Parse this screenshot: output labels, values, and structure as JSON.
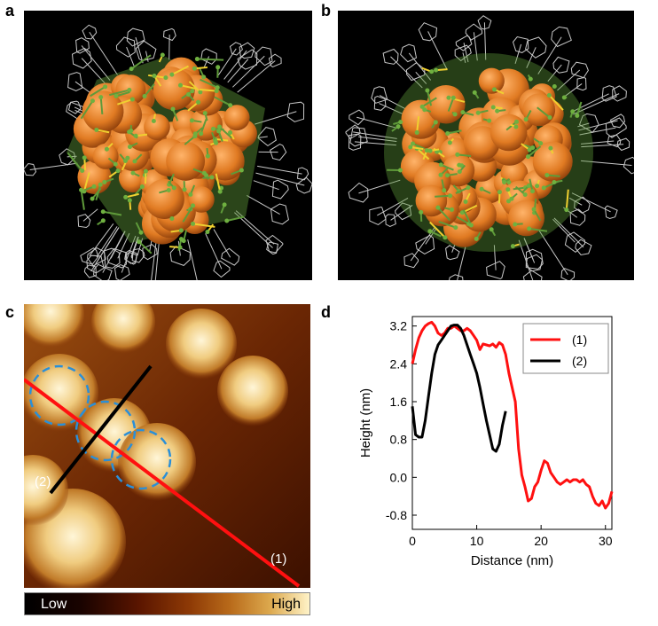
{
  "panels": {
    "a": {
      "letter": "a"
    },
    "b": {
      "letter": "b"
    },
    "c": {
      "letter": "c",
      "line1_label": "(1)",
      "line2_label": "(2)",
      "colorbar_low": "Low",
      "colorbar_high": "High"
    },
    "d": {
      "letter": "d"
    }
  },
  "colors": {
    "sphere": "#e07a22",
    "ligand": "#c8c8c8",
    "shell_green": "#5f9a3a",
    "shell_yellow": "#f0d030",
    "line1": "#ff1010",
    "line2": "#000000",
    "circles": "#2a8fd8"
  },
  "chart_data": {
    "type": "line",
    "xlabel": "Distance (nm)",
    "ylabel": "Height (nm)",
    "xlim": [
      0,
      31
    ],
    "ylim": [
      -1.1,
      3.4
    ],
    "xticks": [
      "0",
      "10",
      "20",
      "30"
    ],
    "yticks": [
      "3.2",
      "2.4",
      "1.6",
      "0.8",
      "0.0",
      "-0.8"
    ],
    "legend_position": "top-right",
    "grid": false,
    "series": [
      {
        "name": "(1)",
        "color": "#ff1010",
        "x": [
          0,
          0.5,
          1,
          1.5,
          2,
          2.5,
          3,
          3.5,
          4,
          4.5,
          5,
          5.5,
          6,
          6.5,
          7,
          7.5,
          8,
          8.5,
          9,
          9.5,
          10,
          10.5,
          11,
          11.5,
          12,
          12.5,
          13,
          13.5,
          14,
          14.5,
          15,
          15.5,
          16,
          16.5,
          17,
          17.5,
          18,
          18.5,
          19,
          19.5,
          20,
          20.5,
          21,
          21.5,
          22,
          22.5,
          23,
          23.5,
          24,
          24.5,
          25,
          25.5,
          26,
          26.5,
          27,
          27.5,
          28,
          28.5,
          29,
          29.5,
          30,
          30.5,
          31
        ],
        "y": [
          2.4,
          2.7,
          2.95,
          3.1,
          3.2,
          3.25,
          3.28,
          3.2,
          3.05,
          3.0,
          3.05,
          3.15,
          3.15,
          3.2,
          3.15,
          3.1,
          3.1,
          3.15,
          3.1,
          3.0,
          2.9,
          2.7,
          2.82,
          2.8,
          2.78,
          2.82,
          2.75,
          2.85,
          2.8,
          2.6,
          2.2,
          1.9,
          1.6,
          0.6,
          0.05,
          -0.2,
          -0.5,
          -0.45,
          -0.2,
          -0.1,
          0.15,
          0.35,
          0.3,
          0.1,
          0.0,
          -0.1,
          -0.15,
          -0.1,
          -0.05,
          -0.1,
          -0.05,
          -0.05,
          -0.1,
          -0.05,
          -0.15,
          -0.2,
          -0.4,
          -0.55,
          -0.6,
          -0.5,
          -0.65,
          -0.55,
          -0.3
        ]
      },
      {
        "name": "(2)",
        "color": "#000000",
        "x": [
          0,
          0.5,
          1,
          1.5,
          2,
          2.5,
          3,
          3.5,
          4,
          4.5,
          5,
          5.5,
          6,
          6.5,
          7,
          7.5,
          8,
          8.5,
          9,
          9.5,
          10,
          10.5,
          11,
          11.5,
          12,
          12.5,
          13,
          13.5,
          14,
          14.5
        ],
        "y": [
          1.5,
          0.9,
          0.85,
          0.85,
          1.2,
          1.7,
          2.2,
          2.6,
          2.8,
          2.9,
          3.0,
          3.1,
          3.2,
          3.22,
          3.22,
          3.15,
          3.0,
          2.8,
          2.6,
          2.4,
          2.2,
          1.9,
          1.55,
          1.2,
          0.9,
          0.6,
          0.55,
          0.7,
          1.1,
          1.4
        ]
      }
    ]
  }
}
